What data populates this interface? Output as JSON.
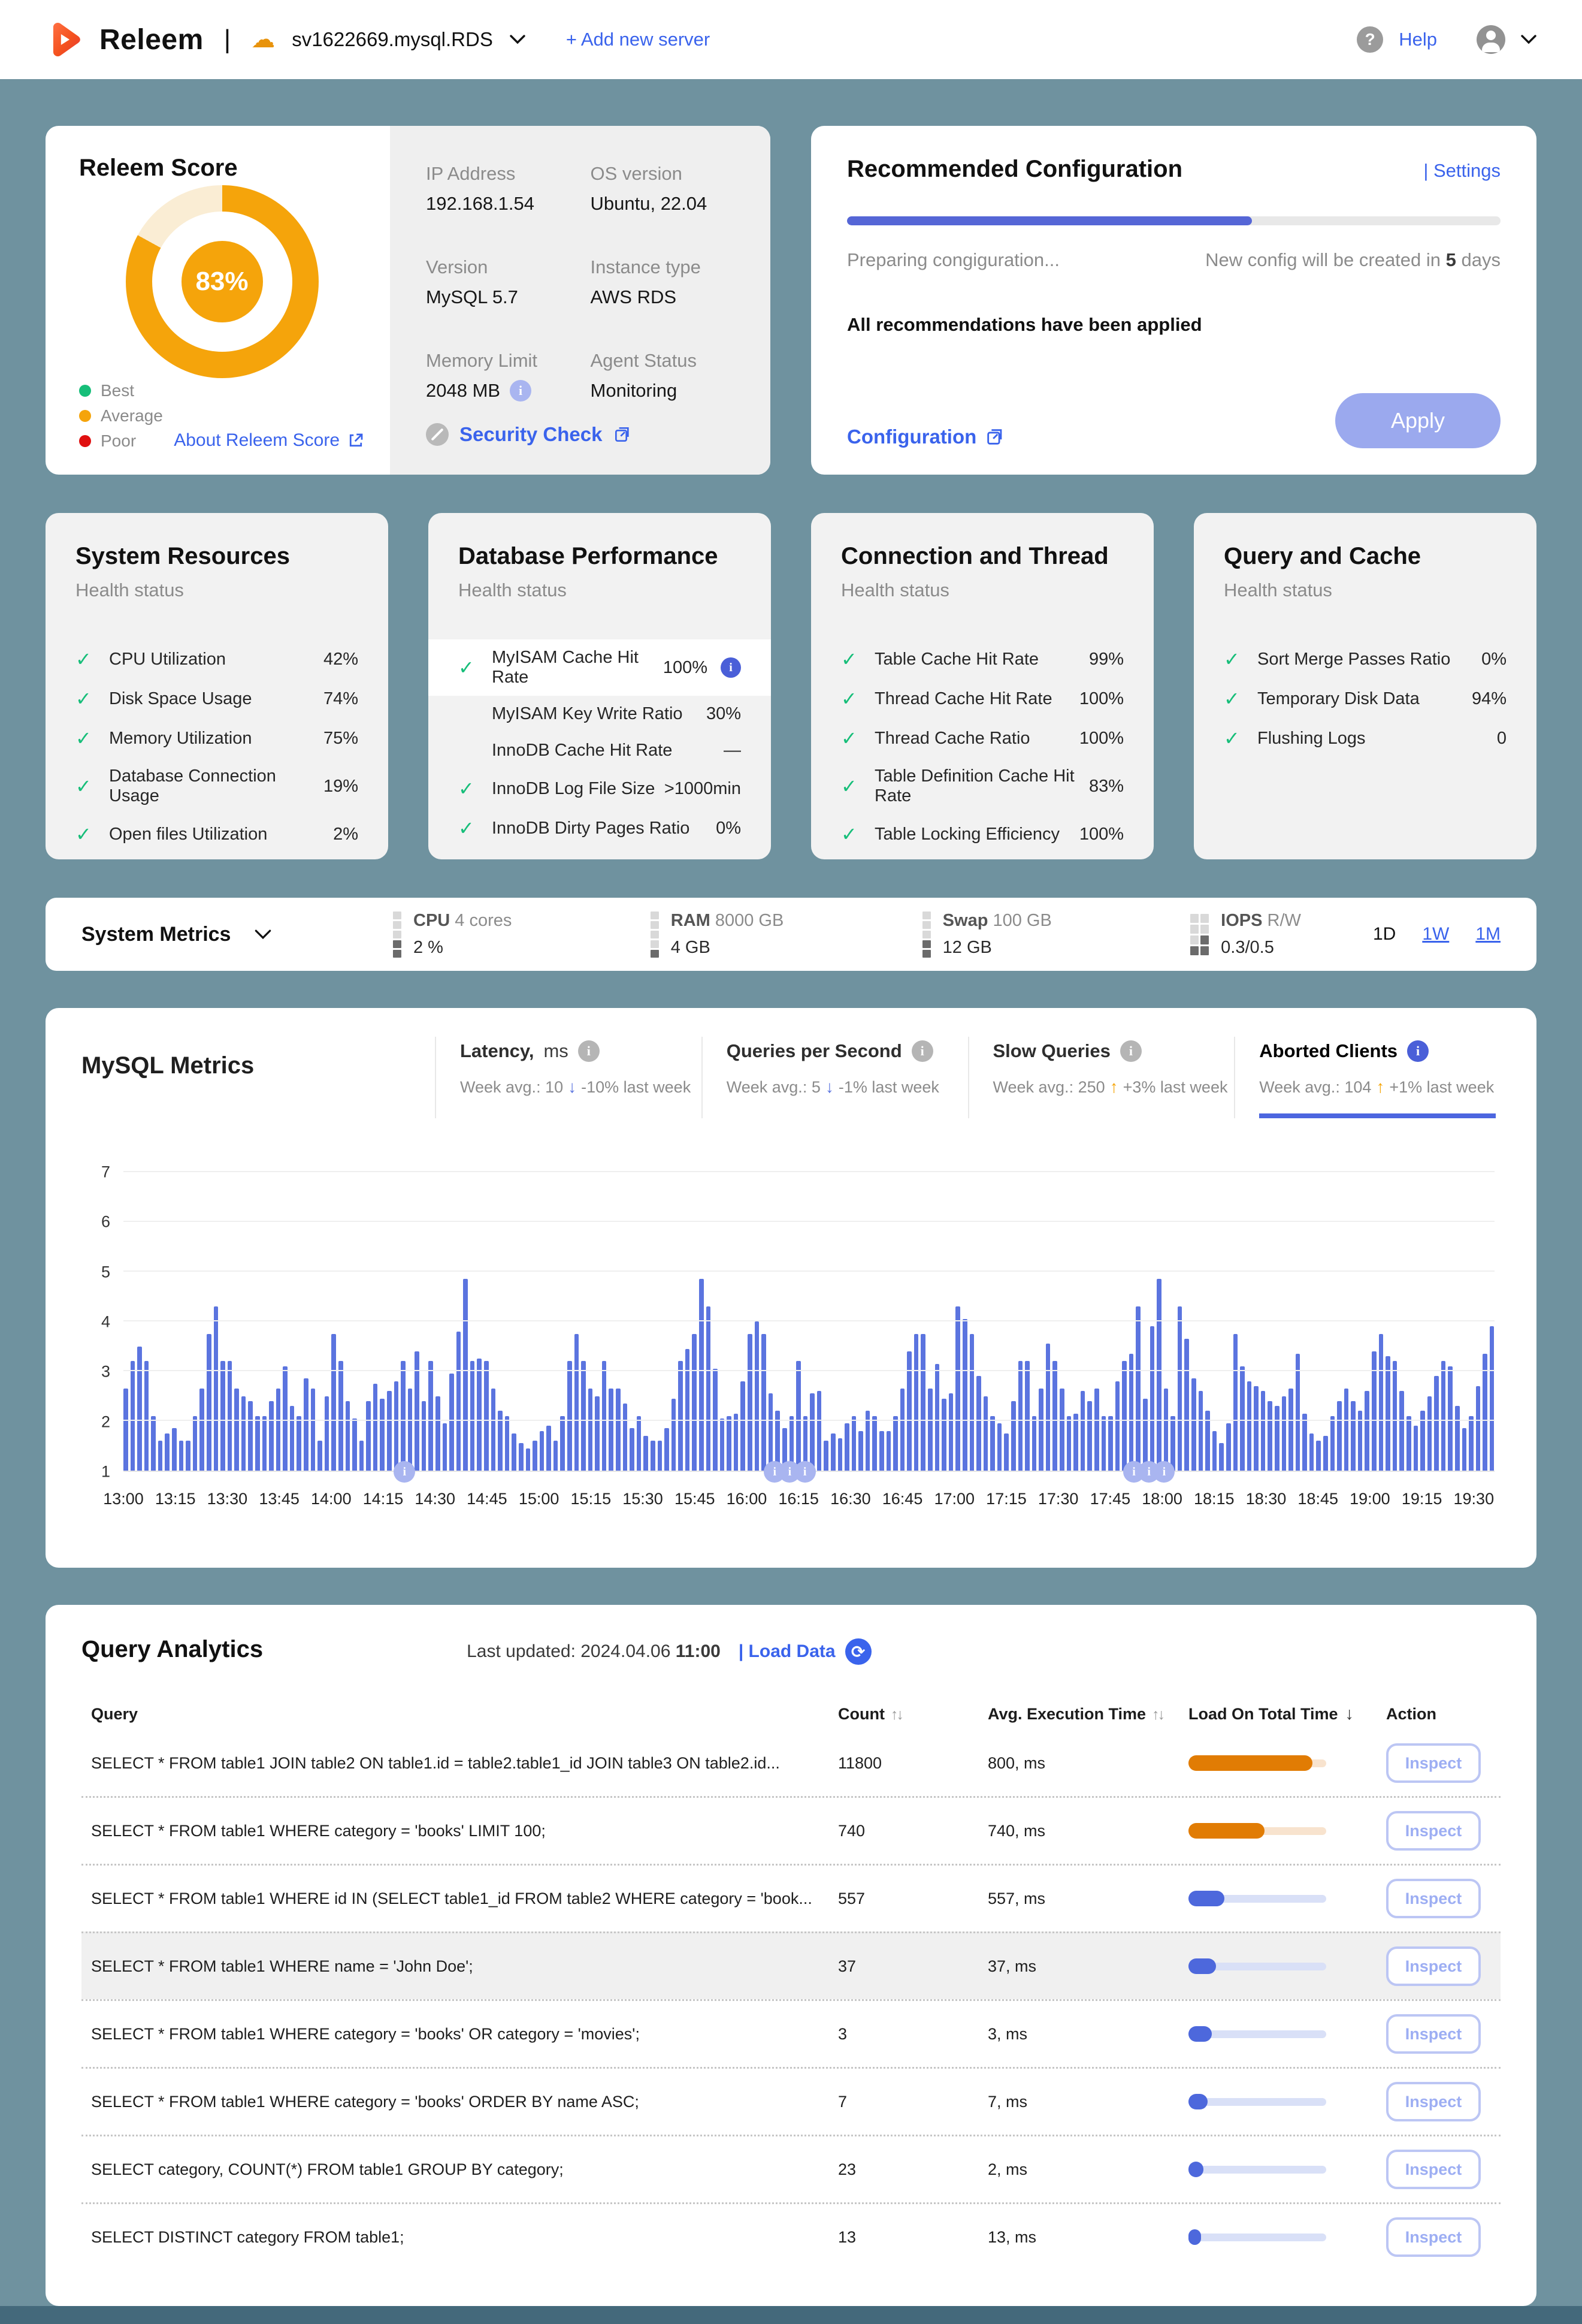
{
  "icons": {
    "info": "i",
    "help": "?",
    "refresh": "⟳",
    "check": "✓",
    "arrow_up": "↑",
    "arrow_down": "↓",
    "sort_updown": "↑↓",
    "sort_down": "↓"
  },
  "colors": {
    "accent_blue": "#3A63EC",
    "indigo": "#5B74DF",
    "orange": "#F5A40B",
    "load_orange": "#E17C04",
    "green": "#16BE79",
    "red": "#E01010",
    "page_bg": "#6F929F"
  },
  "header": {
    "brand": "Releem",
    "divider": "|",
    "server_name": "sv1622669.mysql.RDS",
    "add_server": "+  Add new server",
    "help": "Help"
  },
  "score_card": {
    "title": "Releem Score",
    "percent": 83,
    "percent_label": "83%",
    "legend": [
      {
        "label": "Best",
        "color": "#16BE79"
      },
      {
        "label": "Average",
        "color": "#F5A40B"
      },
      {
        "label": "Poor",
        "color": "#E01010"
      }
    ],
    "about_link": "About Releem Score"
  },
  "server_info": {
    "fields": [
      {
        "label": "IP Address",
        "value": "192.168.1.54"
      },
      {
        "label": "OS version",
        "value": "Ubuntu, 22.04"
      },
      {
        "label": "Version",
        "value": "MySQL 5.7"
      },
      {
        "label": "Instance type",
        "value": "AWS RDS"
      },
      {
        "label": "Memory Limit",
        "value": "2048 MB",
        "info": true
      },
      {
        "label": "Agent Status",
        "value": "Monitoring"
      }
    ],
    "security_check": "Security Check"
  },
  "recommended": {
    "title": "Recommended Configuration",
    "settings_link": "| Settings",
    "progress_percent": 62,
    "status_left": "Preparing congiguration...",
    "status_right_prefix": "New config will be created in ",
    "status_right_bold": "5",
    "status_right_suffix": " days",
    "message": "All recommendations have been applied",
    "config_link": "Configuration",
    "apply_label": "Apply"
  },
  "health_cards": [
    {
      "title": "System Resources",
      "subtitle": "Health status",
      "rows": [
        {
          "check": true,
          "label": "CPU Utilization",
          "value": "42%"
        },
        {
          "check": true,
          "label": "Disk Space Usage",
          "value": "74%"
        },
        {
          "check": true,
          "label": "Memory Utilization",
          "value": "75%"
        },
        {
          "check": true,
          "label": "Database Connection Usage",
          "value": "19%"
        },
        {
          "check": true,
          "label": "Open files Utilization",
          "value": "2%"
        }
      ]
    },
    {
      "title": "Database Performance",
      "subtitle": "Health status",
      "rows": [
        {
          "check": true,
          "label": "MyISAM Cache Hit Rate",
          "value": "100%",
          "info": true,
          "highlight": true
        },
        {
          "check": false,
          "label": "MyISAM Key Write Ratio",
          "value": "30%"
        },
        {
          "check": false,
          "label": "InnoDB Cache Hit Rate",
          "value": "—"
        },
        {
          "check": true,
          "label": "InnoDB Log File Size",
          "value": ">1000min"
        },
        {
          "check": true,
          "label": "InnoDB Dirty Pages Ratio",
          "value": "0%"
        }
      ]
    },
    {
      "title": "Connection and Thread",
      "subtitle": "Health status",
      "rows": [
        {
          "check": true,
          "label": "Table Cache Hit Rate",
          "value": "99%"
        },
        {
          "check": true,
          "label": "Thread Cache Hit Rate",
          "value": "100%"
        },
        {
          "check": true,
          "label": "Thread Cache Ratio",
          "value": "100%"
        },
        {
          "check": true,
          "label": "Table Definition Cache Hit Rate",
          "value": "83%"
        },
        {
          "check": true,
          "label": "Table Locking Efficiency",
          "value": "100%"
        }
      ]
    },
    {
      "title": "Query and Cache",
      "subtitle": "Health status",
      "rows": [
        {
          "check": true,
          "label": "Sort Merge Passes Ratio",
          "value": "0%"
        },
        {
          "check": true,
          "label": "Temporary Disk Data",
          "value": "94%"
        },
        {
          "check": true,
          "label": "Flushing Logs",
          "value": "0"
        }
      ]
    }
  ],
  "system_metrics": {
    "title": "System Metrics",
    "items": [
      {
        "name": "CPU",
        "spec": "4 cores",
        "value": "2 %",
        "icon": "cpu-meter"
      },
      {
        "name": "RAM",
        "spec": "8000 GB",
        "value": "4 GB",
        "icon": "ram-meter"
      },
      {
        "name": "Swap",
        "spec": "100 GB",
        "value": "12 GB",
        "icon": "swap-meter"
      },
      {
        "name": "IOPS",
        "spec": "R/W",
        "value": "0.3/0.5",
        "icon": "iops-meter"
      }
    ],
    "ranges": [
      {
        "label": "1D",
        "active": true
      },
      {
        "label": "1W",
        "active": false
      },
      {
        "label": "1M",
        "active": false
      }
    ]
  },
  "mysql_metrics": {
    "title": "MySQL Metrics",
    "tabs": [
      {
        "title": "Latency,",
        "title_suffix": " ms",
        "avg": "Week avg.: 10",
        "arrow": "down",
        "delta": "-10% last week",
        "active": false
      },
      {
        "title": "Queries per Second",
        "title_suffix": "",
        "avg": "Week avg.: 5",
        "arrow": "down",
        "delta": "-1% last week",
        "active": false
      },
      {
        "title": "Slow Queries",
        "title_suffix": "",
        "avg": "Week avg.: 250",
        "arrow": "up",
        "delta": "+3% last week",
        "active": false
      },
      {
        "title": "Aborted Clients",
        "title_suffix": "",
        "avg": "Week avg.: 104",
        "arrow": "up",
        "delta": "+1% last week",
        "active": true
      }
    ]
  },
  "chart_data": {
    "type": "bar",
    "title": "Aborted Clients",
    "ylabel": "",
    "xlabel": "",
    "ylim": [
      1,
      7
    ],
    "y_ticks": [
      1,
      2,
      3,
      4,
      5,
      6,
      7
    ],
    "grid": true,
    "bar_color": "#5B74DF",
    "x_tick_labels": [
      "13:00",
      "13:15",
      "13:30",
      "13:45",
      "14:00",
      "14:15",
      "14:30",
      "14:45",
      "15:00",
      "15:15",
      "15:30",
      "15:45",
      "16:00",
      "16:15",
      "16:30",
      "16:45",
      "17:00",
      "17:15",
      "17:30",
      "17:45",
      "18:00",
      "18:15",
      "18:30",
      "18:45",
      "19:00",
      "19:15",
      "19:30"
    ],
    "minutes_per_bar": 2,
    "total_minutes": 396,
    "marker_positions_pct": [
      20.5,
      47.5,
      48.6,
      49.7,
      73.7,
      74.8,
      75.9
    ],
    "values": [
      2.65,
      3.2,
      3.5,
      3.2,
      2.1,
      1.6,
      1.75,
      1.85,
      1.6,
      1.6,
      2.1,
      2.65,
      3.75,
      4.3,
      3.2,
      3.2,
      2.65,
      2.5,
      2.4,
      2.1,
      2.1,
      2.4,
      2.65,
      3.1,
      2.3,
      2.1,
      2.85,
      2.65,
      1.6,
      2.5,
      3.75,
      3.2,
      2.4,
      2.05,
      1.6,
      2.4,
      2.75,
      2.45,
      2.6,
      2.8,
      3.2,
      2.65,
      3.4,
      2.4,
      3.2,
      2.5,
      1.95,
      2.95,
      3.8,
      4.85,
      3.2,
      3.25,
      3.2,
      2.65,
      2.2,
      2.1,
      1.75,
      1.55,
      1.45,
      1.6,
      1.8,
      1.9,
      1.6,
      2.1,
      3.2,
      3.75,
      3.2,
      2.65,
      2.5,
      3.2,
      2.65,
      2.65,
      2.35,
      1.85,
      2.1,
      1.7,
      1.6,
      1.6,
      1.85,
      2.45,
      3.2,
      3.45,
      3.75,
      4.85,
      4.3,
      3.05,
      2.05,
      2.1,
      2.15,
      2.8,
      3.75,
      4.0,
      3.75,
      2.55,
      2.2,
      1.85,
      2.1,
      3.2,
      2.1,
      2.55,
      2.6,
      1.6,
      1.75,
      1.65,
      1.95,
      2.1,
      1.8,
      2.2,
      2.1,
      1.8,
      1.8,
      2.1,
      2.65,
      3.4,
      3.75,
      3.75,
      2.65,
      3.15,
      2.45,
      2.55,
      4.3,
      4.05,
      3.75,
      2.9,
      2.5,
      2.1,
      1.95,
      1.75,
      2.4,
      3.2,
      3.2,
      2.1,
      2.65,
      3.55,
      3.2,
      2.65,
      2.1,
      2.15,
      2.6,
      2.4,
      2.65,
      2.1,
      2.1,
      2.8,
      3.2,
      3.35,
      4.3,
      2.45,
      3.9,
      4.85,
      2.65,
      2.1,
      4.3,
      3.65,
      2.85,
      2.6,
      2.2,
      1.8,
      1.55,
      1.95,
      3.75,
      3.1,
      2.8,
      2.7,
      2.6,
      2.4,
      2.3,
      2.5,
      2.65,
      3.35,
      2.15,
      1.75,
      1.6,
      1.7,
      2.1,
      2.4,
      2.65,
      2.4,
      2.2,
      2.6,
      3.4,
      3.75,
      3.3,
      3.2,
      2.6,
      2.1,
      1.9,
      2.2,
      2.5,
      2.9,
      3.2,
      3.1,
      2.3,
      1.85,
      2.1,
      2.7,
      3.35,
      3.9
    ]
  },
  "query_analytics": {
    "title": "Query Analytics",
    "last_updated_prefix": "Last updated: 2024.04.06 ",
    "last_updated_time": "11:00",
    "load_data": "| Load Data",
    "columns": {
      "query": "Query",
      "count": "Count",
      "avg": "Avg. Execution Time",
      "load": "Load On Total Time",
      "action": "Action"
    },
    "inspect_label": "Inspect",
    "rows": [
      {
        "query": "SELECT * FROM table1 JOIN table2 ON table1.id = table2.table1_id JOIN table3 ON table2.id...",
        "count": "11800",
        "avg": "800, ms",
        "load_pct": 90,
        "load_color": "orange",
        "highlight": false
      },
      {
        "query": "SELECT * FROM table1 WHERE category = 'books' LIMIT 100;",
        "count": "740",
        "avg": "740, ms",
        "load_pct": 55,
        "load_color": "orange",
        "highlight": false
      },
      {
        "query": "SELECT * FROM table1 WHERE id IN (SELECT table1_id FROM table2 WHERE category = 'book...",
        "count": "557",
        "avg": "557, ms",
        "load_pct": 26,
        "load_color": "blue",
        "highlight": false
      },
      {
        "query": "SELECT * FROM table1 WHERE name = 'John Doe';",
        "count": "37",
        "avg": "37, ms",
        "load_pct": 20,
        "load_color": "blue",
        "highlight": true
      },
      {
        "query": "SELECT * FROM table1 WHERE category = 'books' OR category = 'movies';",
        "count": "3",
        "avg": "3, ms",
        "load_pct": 17,
        "load_color": "blue",
        "highlight": false
      },
      {
        "query": "SELECT * FROM table1 WHERE category = 'books' ORDER BY name ASC;",
        "count": "7",
        "avg": "7, ms",
        "load_pct": 14,
        "load_color": "blue",
        "highlight": false
      },
      {
        "query": "SELECT category, COUNT(*) FROM table1 GROUP BY category;",
        "count": "23",
        "avg": "2, ms",
        "load_pct": 11,
        "load_color": "blue",
        "highlight": false
      },
      {
        "query": "SELECT DISTINCT category FROM table1;",
        "count": "13",
        "avg": "13, ms",
        "load_pct": 9,
        "load_color": "blue",
        "highlight": false
      }
    ]
  }
}
